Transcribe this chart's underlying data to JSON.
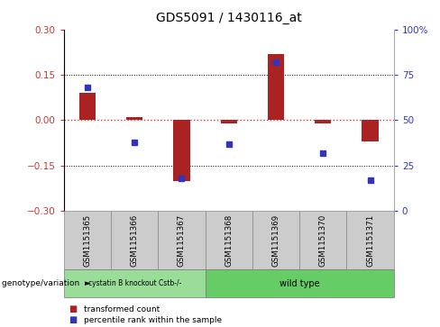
{
  "title": "GDS5091 / 1430116_at",
  "samples": [
    "GSM1151365",
    "GSM1151366",
    "GSM1151367",
    "GSM1151368",
    "GSM1151369",
    "GSM1151370",
    "GSM1151371"
  ],
  "transformed_count": [
    0.09,
    0.01,
    -0.2,
    -0.01,
    0.22,
    -0.01,
    -0.07
  ],
  "percentile_rank": [
    68,
    38,
    18,
    37,
    82,
    32,
    17
  ],
  "ylim_left": [
    -0.3,
    0.3
  ],
  "ylim_right": [
    0,
    100
  ],
  "yticks_left": [
    -0.3,
    -0.15,
    0.0,
    0.15,
    0.3
  ],
  "yticks_right": [
    0,
    25,
    50,
    75,
    100
  ],
  "ytick_labels_right": [
    "0",
    "25",
    "50",
    "75",
    "100%"
  ],
  "hlines_dotted": [
    -0.15,
    0.15
  ],
  "hline_zero_color": "#dd3333",
  "hline_dotted_color": "#000000",
  "bar_color": "#aa2222",
  "dot_color": "#3333bb",
  "group1_label": "cystatin B knockout Cstb-/-",
  "group2_label": "wild type",
  "group1_color": "#99dd99",
  "group2_color": "#66cc66",
  "group_label": "genotype/variation",
  "legend_bar_label": "transformed count",
  "legend_dot_label": "percentile rank within the sample",
  "bar_width": 0.35,
  "group1_indices": [
    0,
    1,
    2
  ],
  "group2_indices": [
    3,
    4,
    5,
    6
  ],
  "left_tick_color": "#cc3333",
  "right_tick_color": "#3333cc",
  "sample_box_color": "#cccccc",
  "sample_box_edge": "#888888"
}
